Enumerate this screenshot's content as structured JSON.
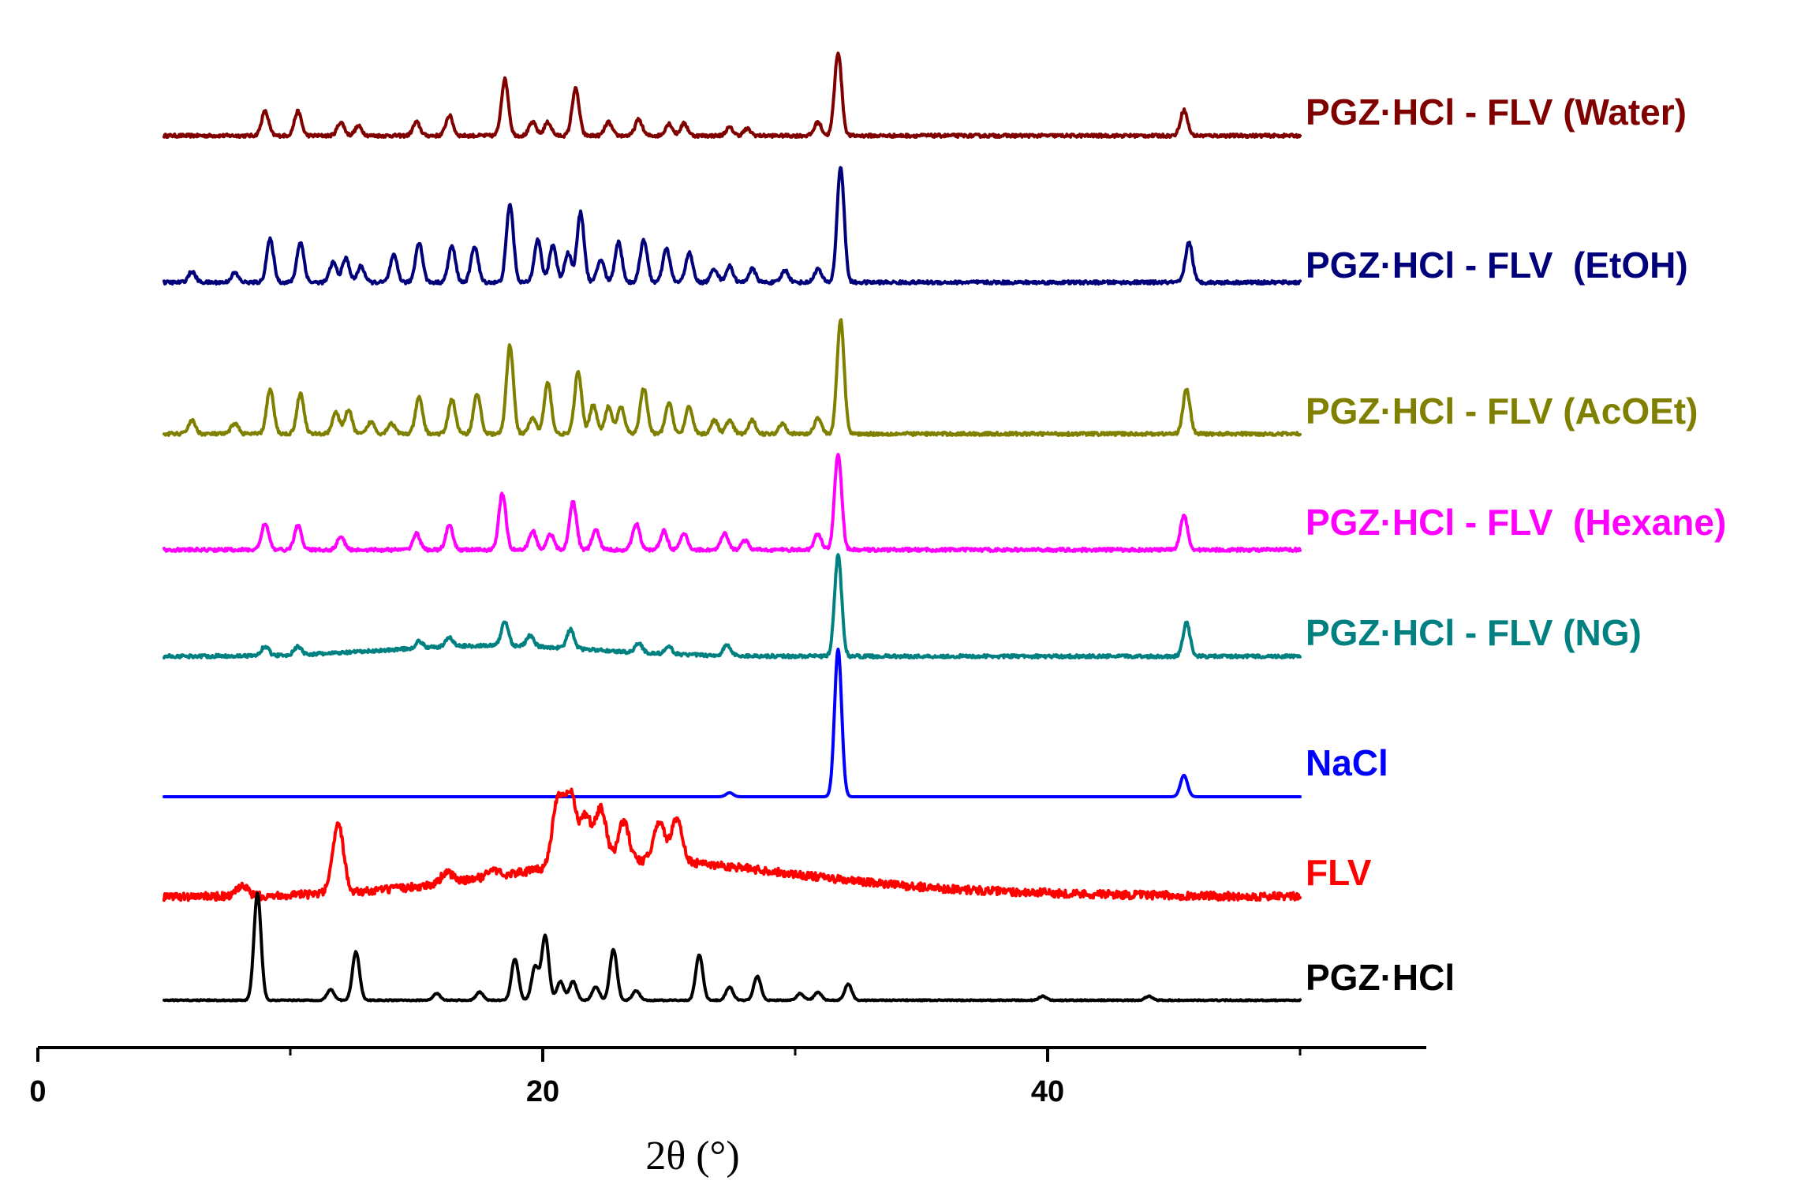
{
  "chart_data": {
    "type": "line",
    "title": "",
    "xlabel": "2θ (°)",
    "ylabel": "",
    "xlim": [
      0,
      55
    ],
    "xticks": [
      0,
      20,
      40
    ],
    "xtick_labels": [
      "0",
      "20",
      "40"
    ],
    "layout": "stacked-offset",
    "series": [
      {
        "name": "PGZ·HCl - FLV (Water)",
        "label": "PGZ·HCl - FLV (Water)",
        "color": "#800000",
        "peaks": [
          [
            9.0,
            0.18
          ],
          [
            10.3,
            0.18
          ],
          [
            12.0,
            0.1
          ],
          [
            12.7,
            0.07
          ],
          [
            15.0,
            0.1
          ],
          [
            16.3,
            0.15
          ],
          [
            18.5,
            0.42
          ],
          [
            19.6,
            0.1
          ],
          [
            20.2,
            0.1
          ],
          [
            21.3,
            0.35
          ],
          [
            22.6,
            0.1
          ],
          [
            23.8,
            0.12
          ],
          [
            25.0,
            0.09
          ],
          [
            25.6,
            0.09
          ],
          [
            27.4,
            0.06
          ],
          [
            28.1,
            0.05
          ],
          [
            30.9,
            0.1
          ],
          [
            31.7,
            0.62
          ],
          [
            45.4,
            0.19
          ]
        ],
        "noise": 0.012
      },
      {
        "name": "PGZ·HCl - FLV  (EtOH)",
        "label": "PGZ·HCl - FLV  (EtOH)",
        "color": "#00007a",
        "peaks": [
          [
            6.1,
            0.08
          ],
          [
            7.8,
            0.07
          ],
          [
            9.2,
            0.32
          ],
          [
            10.4,
            0.3
          ],
          [
            11.7,
            0.15
          ],
          [
            12.2,
            0.18
          ],
          [
            12.8,
            0.12
          ],
          [
            14.1,
            0.2
          ],
          [
            15.1,
            0.3
          ],
          [
            16.4,
            0.27
          ],
          [
            17.3,
            0.27
          ],
          [
            18.7,
            0.58
          ],
          [
            19.8,
            0.32
          ],
          [
            20.4,
            0.28
          ],
          [
            21.0,
            0.22
          ],
          [
            21.5,
            0.52
          ],
          [
            22.3,
            0.17
          ],
          [
            23.0,
            0.3
          ],
          [
            24.0,
            0.32
          ],
          [
            24.9,
            0.25
          ],
          [
            25.8,
            0.22
          ],
          [
            26.8,
            0.1
          ],
          [
            27.4,
            0.12
          ],
          [
            28.3,
            0.1
          ],
          [
            29.6,
            0.09
          ],
          [
            30.9,
            0.1
          ],
          [
            31.8,
            0.86
          ],
          [
            45.6,
            0.3
          ]
        ],
        "noise": 0.012
      },
      {
        "name": "PGZ·HCl - FLV (AcOEt)",
        "label": "PGZ·HCl - FLV (AcOEt)",
        "color": "#808000",
        "peaks": [
          [
            6.1,
            0.1
          ],
          [
            7.8,
            0.08
          ],
          [
            9.2,
            0.33
          ],
          [
            10.4,
            0.3
          ],
          [
            11.8,
            0.16
          ],
          [
            12.3,
            0.18
          ],
          [
            13.2,
            0.09
          ],
          [
            14.0,
            0.08
          ],
          [
            15.1,
            0.27
          ],
          [
            16.4,
            0.26
          ],
          [
            17.4,
            0.3
          ],
          [
            18.7,
            0.66
          ],
          [
            19.6,
            0.12
          ],
          [
            20.2,
            0.38
          ],
          [
            21.4,
            0.46
          ],
          [
            22.0,
            0.22
          ],
          [
            22.6,
            0.2
          ],
          [
            23.1,
            0.2
          ],
          [
            24.0,
            0.34
          ],
          [
            25.0,
            0.23
          ],
          [
            25.8,
            0.2
          ],
          [
            26.8,
            0.1
          ],
          [
            27.4,
            0.1
          ],
          [
            28.3,
            0.1
          ],
          [
            29.5,
            0.08
          ],
          [
            30.9,
            0.12
          ],
          [
            31.8,
            0.85
          ],
          [
            45.5,
            0.33
          ]
        ],
        "noise": 0.012
      },
      {
        "name": "PGZ·HCl - FLV  (Hexane)",
        "label": "PGZ·HCl - FLV  (Hexane)",
        "color": "#ff00ff",
        "peaks": [
          [
            9.0,
            0.2
          ],
          [
            10.3,
            0.18
          ],
          [
            12.0,
            0.1
          ],
          [
            15.0,
            0.12
          ],
          [
            16.3,
            0.18
          ],
          [
            18.4,
            0.42
          ],
          [
            19.6,
            0.14
          ],
          [
            20.3,
            0.12
          ],
          [
            21.2,
            0.36
          ],
          [
            22.1,
            0.15
          ],
          [
            23.7,
            0.2
          ],
          [
            24.8,
            0.14
          ],
          [
            25.6,
            0.12
          ],
          [
            27.2,
            0.12
          ],
          [
            28.0,
            0.07
          ],
          [
            30.9,
            0.12
          ],
          [
            31.7,
            0.72
          ],
          [
            45.4,
            0.26
          ]
        ],
        "noise": 0.012
      },
      {
        "name": "PGZ·HCl - FLV (NG)",
        "label": "PGZ·HCl - FLV (NG)",
        "color": "#008080",
        "peaks": [
          [
            9.0,
            0.07
          ],
          [
            10.3,
            0.06
          ],
          [
            15.1,
            0.05
          ],
          [
            16.3,
            0.07
          ],
          [
            18.5,
            0.18
          ],
          [
            19.5,
            0.08
          ],
          [
            21.1,
            0.14
          ],
          [
            23.8,
            0.07
          ],
          [
            25.0,
            0.05
          ],
          [
            27.3,
            0.08
          ],
          [
            31.7,
            0.75
          ],
          [
            45.5,
            0.25
          ]
        ],
        "hump": [
          [
            18.0,
            4.0,
            0.08
          ]
        ],
        "noise": 0.012
      },
      {
        "name": "NaCl",
        "label": "NaCl",
        "color": "#0000ff",
        "peaks": [
          [
            27.4,
            0.03
          ],
          [
            31.7,
            1.1
          ],
          [
            45.4,
            0.16
          ]
        ],
        "noise": 0.0
      },
      {
        "name": "FLV",
        "label": "FLV",
        "color": "#ff0000",
        "peaks": [
          [
            8.1,
            0.07
          ],
          [
            11.9,
            0.5
          ],
          [
            16.2,
            0.08
          ],
          [
            18.0,
            0.05
          ],
          [
            20.6,
            0.5
          ],
          [
            21.1,
            0.52
          ],
          [
            21.7,
            0.35
          ],
          [
            22.3,
            0.4
          ],
          [
            23.2,
            0.3
          ],
          [
            24.6,
            0.3
          ],
          [
            25.3,
            0.32
          ]
        ],
        "hump": [
          [
            23.5,
            5.5,
            0.22
          ],
          [
            30.0,
            8.0,
            0.06
          ]
        ],
        "noise": 0.03
      },
      {
        "name": "PGZ·HCl",
        "label": "PGZ·HCl",
        "color": "#000000",
        "peaks": [
          [
            8.7,
            0.8
          ],
          [
            11.6,
            0.08
          ],
          [
            12.6,
            0.36
          ],
          [
            15.8,
            0.05
          ],
          [
            17.5,
            0.06
          ],
          [
            18.9,
            0.31
          ],
          [
            19.7,
            0.25
          ],
          [
            20.1,
            0.48
          ],
          [
            20.7,
            0.14
          ],
          [
            21.2,
            0.14
          ],
          [
            22.1,
            0.1
          ],
          [
            22.8,
            0.38
          ],
          [
            23.7,
            0.07
          ],
          [
            26.2,
            0.34
          ],
          [
            27.4,
            0.1
          ],
          [
            28.5,
            0.18
          ],
          [
            30.2,
            0.05
          ],
          [
            30.9,
            0.06
          ],
          [
            32.1,
            0.12
          ],
          [
            39.8,
            0.03
          ],
          [
            44.0,
            0.03
          ]
        ],
        "noise": 0.004
      }
    ]
  }
}
